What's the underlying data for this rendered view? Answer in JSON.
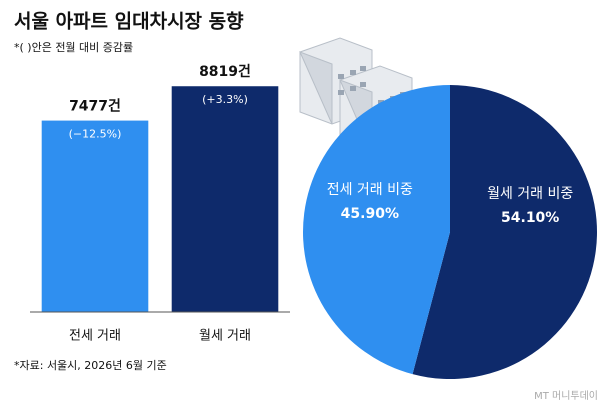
{
  "title": "서울 아파트 임대차시장 동향",
  "subtitle": "*( )안은 전월 대비 증감률",
  "source": "*자료: 서울시, 2026년 6월 기준",
  "watermark": "MT 머니투데이",
  "chart_data": [
    {
      "type": "bar",
      "categories": [
        "전세 거래",
        "월세 거래"
      ],
      "values": [
        7477,
        8819
      ],
      "value_labels": [
        "7477건",
        "8819건"
      ],
      "annotations": [
        "(−12.5%)",
        "(+3.3%)"
      ],
      "colors": [
        "#2f8ff0",
        "#0e2a6b"
      ],
      "ylim": [
        0,
        10000
      ]
    },
    {
      "type": "pie",
      "categories": [
        "전세 거래 비중",
        "월세 거래 비중"
      ],
      "values": [
        45.9,
        54.1
      ],
      "value_labels": [
        "45.90%",
        "54.10%"
      ],
      "colors": [
        "#2f8ff0",
        "#0e2a6b"
      ]
    }
  ]
}
